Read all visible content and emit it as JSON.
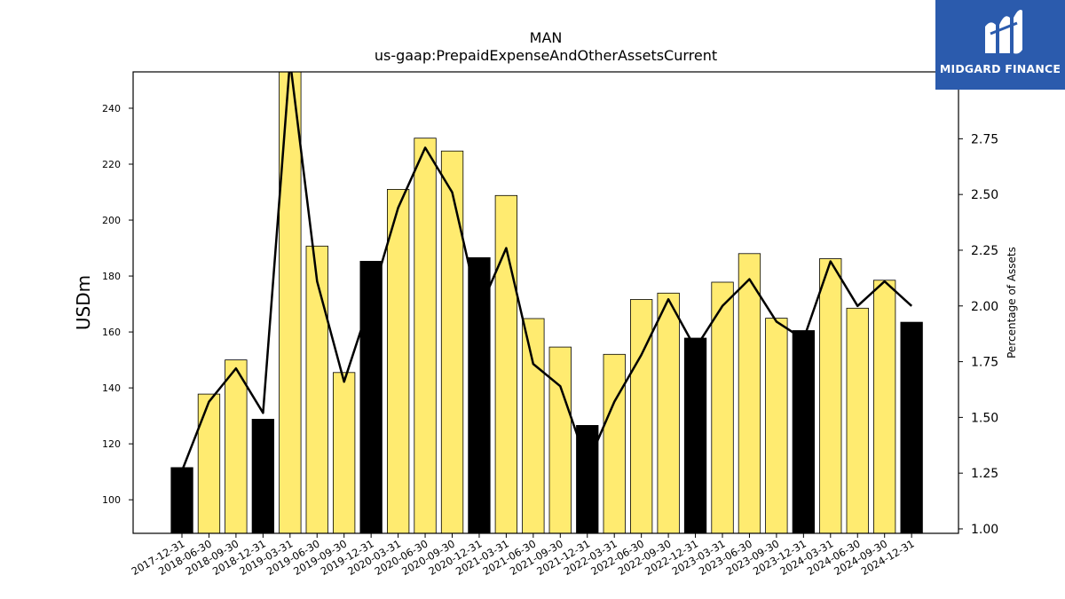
{
  "colors": {
    "bar_fill": "#ffeb70",
    "bar_fill_q4": "#000000",
    "bar_stroke": "#000000",
    "line": "#000000",
    "logo_bg": "#2b5bad",
    "logo_fg": "#ffffff"
  },
  "logo": {
    "text": "MIDGARD FINANCE",
    "icon": "midgard-m-logo-icon"
  },
  "chart_data": {
    "type": "bar",
    "title": "MAN",
    "subtitle": "us-gaap:PrepaidExpenseAndOtherAssetsCurrent",
    "ylabel": "USDm",
    "y2label": "Percentage of Assets",
    "ylim": [
      88,
      253
    ],
    "y2lim": [
      0.98,
      3.05
    ],
    "yticks": [
      100,
      120,
      140,
      160,
      180,
      200,
      220,
      240
    ],
    "y2ticks": [
      "1.00",
      "1.25",
      "1.50",
      "1.75",
      "2.00",
      "2.25",
      "2.50",
      "2.75"
    ],
    "grid": false,
    "categories": [
      "2017-12-31",
      "2018-06-30",
      "2018-09-30",
      "2018-12-31",
      "2019-03-31",
      "2019-06-30",
      "2019-09-30",
      "2019-12-31",
      "2020-03-31",
      "2020-06-30",
      "2020-09-30",
      "2020-12-31",
      "2021-03-31",
      "2021-06-30",
      "2021-09-30",
      "2021-12-31",
      "2022-03-31",
      "2022-06-30",
      "2022-09-30",
      "2022-12-31",
      "2023-03-31",
      "2023-06-30",
      "2023-09-30",
      "2023-12-31",
      "2024-03-31",
      "2024-06-30",
      "2024-09-30",
      "2024-12-31"
    ],
    "series": [
      {
        "type": "bar",
        "values": [
          111.5,
          137.8,
          150.0,
          128.8,
          254.0,
          190.7,
          145.5,
          185.3,
          211.0,
          229.3,
          224.7,
          186.6,
          208.8,
          164.8,
          154.6,
          126.6,
          152.0,
          171.6,
          173.9,
          157.8,
          177.8,
          188.0,
          164.9,
          160.5,
          186.2,
          168.5,
          178.5,
          163.5
        ]
      },
      {
        "type": "line",
        "axis": "right",
        "values": [
          1.26,
          1.57,
          1.72,
          1.52,
          3.1,
          2.11,
          1.66,
          2.03,
          2.44,
          2.71,
          2.51,
          1.98,
          2.26,
          1.74,
          1.64,
          1.29,
          1.57,
          1.78,
          2.03,
          1.81,
          2.0,
          2.12,
          1.93,
          1.85,
          2.2,
          2.0,
          2.11,
          2.0
        ]
      }
    ],
    "highlight_categories": [
      "2017-12-31",
      "2018-12-31",
      "2019-12-31",
      "2020-12-31",
      "2021-12-31",
      "2022-12-31",
      "2023-12-31",
      "2024-12-31"
    ]
  }
}
